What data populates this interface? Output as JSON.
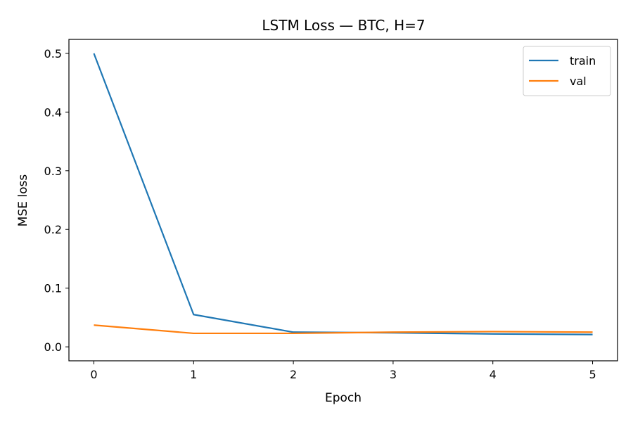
{
  "chart_data": {
    "type": "line",
    "title": "LSTM Loss — BTC, H=7",
    "xlabel": "Epoch",
    "ylabel": "MSE loss",
    "x": [
      0,
      1,
      2,
      3,
      4,
      5
    ],
    "xticks": [
      "0",
      "1",
      "2",
      "3",
      "4",
      "5"
    ],
    "yticks": [
      "0.0",
      "0.1",
      "0.2",
      "0.3",
      "0.4",
      "0.5"
    ],
    "xlim": [
      -0.25,
      5.25
    ],
    "ylim": [
      -0.0238,
      0.5238
    ],
    "grid": false,
    "legend": "top-right",
    "series": [
      {
        "name": "train",
        "color": "#1f77b4",
        "values": [
          0.5,
          0.055,
          0.025,
          0.024,
          0.022,
          0.021
        ]
      },
      {
        "name": "val",
        "color": "#ff7f0e",
        "values": [
          0.037,
          0.023,
          0.023,
          0.025,
          0.026,
          0.025
        ]
      }
    ]
  }
}
